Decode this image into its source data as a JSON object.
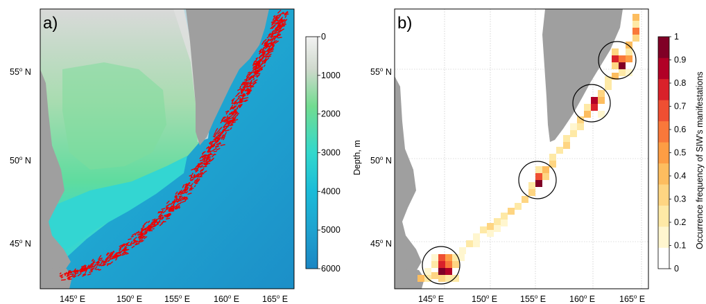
{
  "panel_a": {
    "letter": "a)",
    "lat_labels": [
      "55",
      "50",
      "45"
    ],
    "lon_labels": [
      "145",
      "150",
      "155",
      "160",
      "165"
    ],
    "lat_suffix": "N",
    "lon_suffix": "E",
    "colorbar": {
      "title": "Depth, m",
      "ticks": [
        "0",
        "1000",
        "2000",
        "3000",
        "4000",
        "5000",
        "6000"
      ],
      "stops": [
        "#ececec",
        "#c9d7c6",
        "#6fdc8f",
        "#34d6c8",
        "#1bb9d6",
        "#1e9fcf",
        "#1a86c4"
      ]
    },
    "marker_color": "#ee0000"
  },
  "panel_b": {
    "letter": "b)",
    "lat_labels": [
      "55",
      "50",
      "45"
    ],
    "lon_labels": [
      "145",
      "150",
      "155",
      "160",
      "165"
    ],
    "lat_suffix": "N",
    "lon_suffix": "E",
    "colorbar": {
      "title": "Occurrence frequency of SIW's manifestations",
      "ticks": [
        "1",
        "0.9",
        "0.8",
        "0.7",
        "0.6",
        "0.5",
        "0.4",
        "0.3",
        "0.2",
        "0.1",
        "0"
      ],
      "colors": [
        "#ffffff",
        "#fff6cf",
        "#fee9a6",
        "#fed582",
        "#fdbd5f",
        "#fd9d44",
        "#f9783a",
        "#ef4f32",
        "#d9212a",
        "#b10026",
        "#800026"
      ]
    }
  },
  "land_color": "#9f9f9f"
}
